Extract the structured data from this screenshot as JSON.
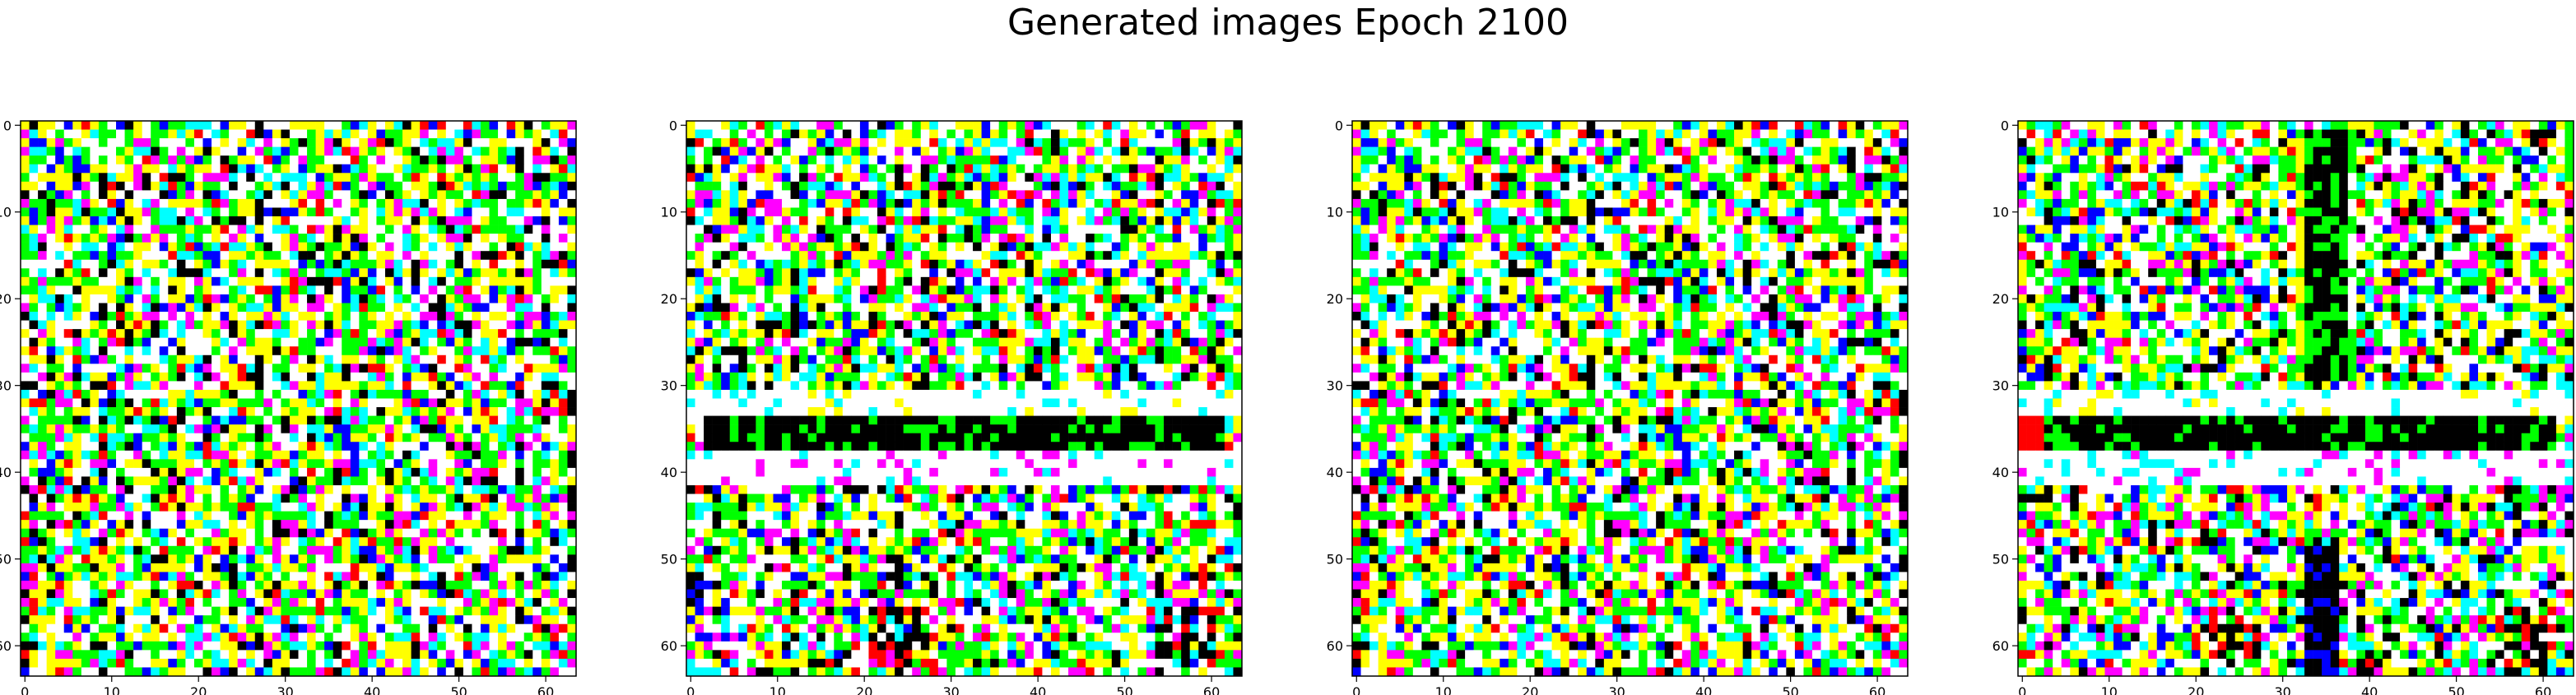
{
  "figure": {
    "title": "Generated images Epoch 2100"
  },
  "chart_data": [
    {
      "type": "heatmap",
      "panel": "image-1",
      "grid_size": 64,
      "xlim": [
        -0.5,
        63.5
      ],
      "ylim": [
        63.5,
        -0.5
      ],
      "x_ticks": [
        0,
        10,
        20,
        30,
        40,
        50,
        60
      ],
      "y_ticks": [
        0,
        10,
        20,
        30,
        40,
        50,
        60
      ],
      "grid": false,
      "palette": [
        "#ffffff",
        "#ffff00",
        "#00ff00",
        "#00ffff",
        "#ff00ff",
        "#0000ff",
        "#ff0000",
        "#000000"
      ],
      "content": "noisy generated RGB pixel image, no dominant structure"
    },
    {
      "type": "heatmap",
      "panel": "image-2",
      "grid_size": 64,
      "xlim": [
        -0.5,
        63.5
      ],
      "ylim": [
        63.5,
        -0.5
      ],
      "x_ticks": [
        0,
        10,
        20,
        30,
        40,
        50,
        60
      ],
      "y_ticks": [
        0,
        10,
        20,
        30,
        40,
        50,
        60
      ],
      "grid": false,
      "palette": [
        "#ffffff",
        "#ffff00",
        "#00ff00",
        "#00ffff",
        "#ff00ff",
        "#0000ff",
        "#ff0000",
        "#000000"
      ],
      "content": "generated RGB pixel image with a horizontal black band near row 35 and white bands near rows 30 and 40"
    },
    {
      "type": "heatmap",
      "panel": "image-3",
      "grid_size": 64,
      "xlim": [
        -0.5,
        63.5
      ],
      "ylim": [
        63.5,
        -0.5
      ],
      "x_ticks": [
        0,
        10,
        20,
        30,
        40,
        50,
        60
      ],
      "y_ticks": [
        0,
        10,
        20,
        30,
        40,
        50,
        60
      ],
      "grid": false,
      "palette": [
        "#ffffff",
        "#ffff00",
        "#00ff00",
        "#00ffff",
        "#ff00ff",
        "#0000ff",
        "#ff0000",
        "#000000"
      ],
      "content": "noisy generated RGB pixel image, near duplicate of image 1"
    },
    {
      "type": "heatmap",
      "panel": "image-4",
      "grid_size": 64,
      "xlim": [
        -0.5,
        63.5
      ],
      "ylim": [
        63.5,
        -0.5
      ],
      "x_ticks": [
        0,
        10,
        20,
        30,
        40,
        50,
        60
      ],
      "y_ticks": [
        0,
        10,
        20,
        30,
        40,
        50,
        60
      ],
      "grid": false,
      "palette": [
        "#ffffff",
        "#ffff00",
        "#00ff00",
        "#00ffff",
        "#ff00ff",
        "#0000ff",
        "#ff0000",
        "#000000"
      ],
      "content": "generated RGB pixel image with a horizontal black band near row 35 and a vertical black band near column 35"
    }
  ]
}
